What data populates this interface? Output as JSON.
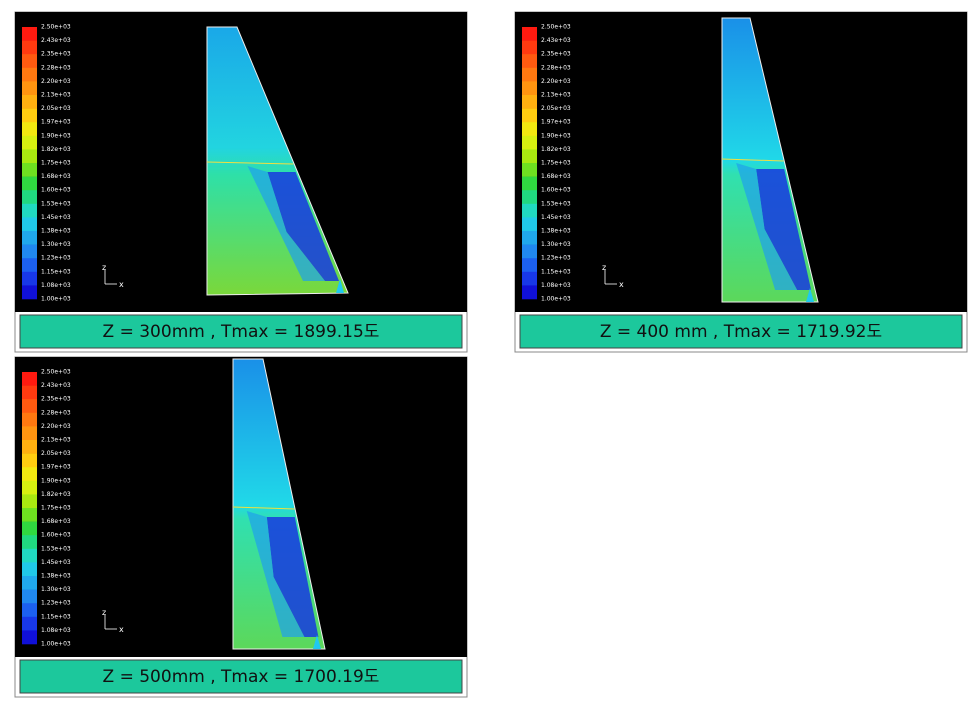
{
  "panels": [
    {
      "legend_labels": [
        "2.50e+03",
        "2.43e+03",
        "2.35e+03",
        "2.28e+03",
        "2.20e+03",
        "2.13e+03",
        "2.05e+03",
        "1.97e+03",
        "1.90e+03",
        "1.82e+03",
        "1.75e+03",
        "1.68e+03",
        "1.60e+03",
        "1.53e+03",
        "1.45e+03",
        "1.38e+03",
        "1.30e+03",
        "1.23e+03",
        "1.15e+03",
        "1.08e+03",
        "1.00e+03"
      ],
      "axis": {
        "vertical": "z",
        "horizontal": "x"
      },
      "caption": "Z  = 300mm , Tmax = 1899.15도"
    },
    {
      "legend_labels": [
        "2.50e+03",
        "2.43e+03",
        "2.35e+03",
        "2.28e+03",
        "2.20e+03",
        "2.13e+03",
        "2.05e+03",
        "1.97e+03",
        "1.90e+03",
        "1.82e+03",
        "1.75e+03",
        "1.68e+03",
        "1.60e+03",
        "1.53e+03",
        "1.45e+03",
        "1.38e+03",
        "1.30e+03",
        "1.23e+03",
        "1.15e+03",
        "1.08e+03",
        "1.00e+03"
      ],
      "axis": {
        "vertical": "z",
        "horizontal": "x"
      },
      "caption": "Z = 400 mm , Tmax = 1719.92도"
    },
    {
      "legend_labels": [
        "2.50e+03",
        "2.43e+03",
        "2.35e+03",
        "2.28e+03",
        "2.20e+03",
        "2.13e+03",
        "2.05e+03",
        "1.97e+03",
        "1.90e+03",
        "1.82e+03",
        "1.75e+03",
        "1.68e+03",
        "1.60e+03",
        "1.53e+03",
        "1.45e+03",
        "1.38e+03",
        "1.30e+03",
        "1.23e+03",
        "1.15e+03",
        "1.08e+03",
        "1.00e+03"
      ],
      "axis": {
        "vertical": "z",
        "horizontal": "x"
      },
      "caption": "Z  = 500mm , Tmax = 1700.19도"
    }
  ]
}
